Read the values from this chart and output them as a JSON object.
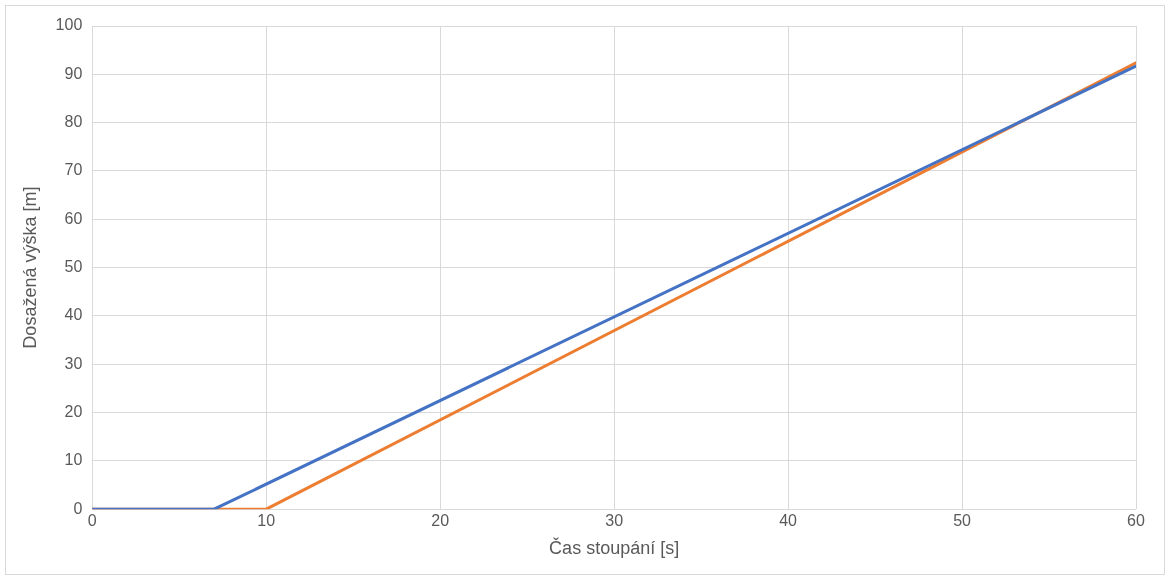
{
  "chart_data": {
    "type": "line",
    "xlabel": "Čas stoupání [s]",
    "ylabel": "Dosažená výška [m]",
    "xlim": [
      0,
      60
    ],
    "xticks": [
      0,
      10,
      20,
      30,
      40,
      50,
      60
    ],
    "ylim": [
      0,
      100
    ],
    "yticks": [
      0,
      10,
      20,
      30,
      40,
      50,
      60,
      70,
      80,
      90,
      100
    ],
    "grid": true,
    "marker": "none",
    "line_style": "solid",
    "series": [
      {
        "color": "#4472c4",
        "x": [
          0,
          7,
          60
        ],
        "values": [
          0,
          0,
          91.7
        ]
      },
      {
        "color": "#ed7d31",
        "x": [
          0,
          10,
          60
        ],
        "values": [
          0,
          0,
          92.4
        ]
      }
    ]
  }
}
